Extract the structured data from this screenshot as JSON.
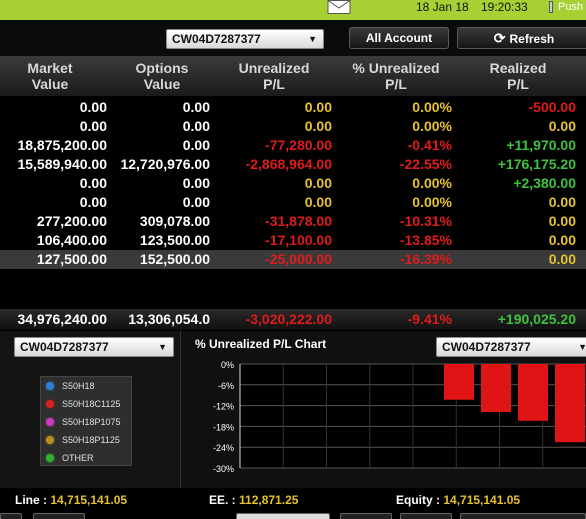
{
  "topbar": {
    "date": "18 Jan 18",
    "time": "19:20:33",
    "push_label": "Push",
    "icons": [
      "mail-icon",
      "push-icon"
    ]
  },
  "controls": {
    "account_select": "CW04D7287377",
    "all_account_label": "All Account",
    "refresh_label": "Refresh"
  },
  "columns": [
    {
      "line1": "Market",
      "line2": "Value"
    },
    {
      "line1": "Options",
      "line2": "Value"
    },
    {
      "line1": "Unrealized",
      "line2": "P/L"
    },
    {
      "line1": "% Unrealized",
      "line2": "P/L"
    },
    {
      "line1": "Realized",
      "line2": "P/L"
    }
  ],
  "rows": [
    {
      "market": "0.00",
      "options": "0.00",
      "unreal": "0.00",
      "pct": "0.00%",
      "realized": "-500.00",
      "u": "yellow",
      "p": "yellow",
      "r": "red"
    },
    {
      "market": "0.00",
      "options": "0.00",
      "unreal": "0.00",
      "pct": "0.00%",
      "realized": "0.00",
      "u": "yellow",
      "p": "yellow",
      "r": "yellow"
    },
    {
      "market": "18,875,200.00",
      "options": "0.00",
      "unreal": "-77,280.00",
      "pct": "-0.41%",
      "realized": "+11,970.00",
      "u": "red",
      "p": "red",
      "r": "green"
    },
    {
      "market": "15,589,940.00",
      "options": "12,720,976.00",
      "unreal": "-2,868,964.00",
      "pct": "-22.55%",
      "realized": "+176,175.20",
      "u": "red",
      "p": "red",
      "r": "green"
    },
    {
      "market": "0.00",
      "options": "0.00",
      "unreal": "0.00",
      "pct": "0.00%",
      "realized": "+2,380.00",
      "u": "yellow",
      "p": "yellow",
      "r": "green"
    },
    {
      "market": "0.00",
      "options": "0.00",
      "unreal": "0.00",
      "pct": "0.00%",
      "realized": "0.00",
      "u": "yellow",
      "p": "yellow",
      "r": "yellow"
    },
    {
      "market": "277,200.00",
      "options": "309,078.00",
      "unreal": "-31,878.00",
      "pct": "-10.31%",
      "realized": "0.00",
      "u": "red",
      "p": "red",
      "r": "yellow"
    },
    {
      "market": "106,400.00",
      "options": "123,500.00",
      "unreal": "-17,100.00",
      "pct": "-13.85%",
      "realized": "0.00",
      "u": "red",
      "p": "red",
      "r": "yellow"
    },
    {
      "market": "127,500.00",
      "options": "152,500.00",
      "unreal": "-25,000.00",
      "pct": "-16.39%",
      "realized": "0.00",
      "u": "red",
      "p": "red",
      "r": "yellow",
      "selected": true
    }
  ],
  "totals": {
    "market": "34,976,240.00",
    "options": "13,306,054.0",
    "unreal": "-3,020,222.00",
    "pct": "-9.41%",
    "realized": "+190,025.20"
  },
  "lower": {
    "left_select": "CW04D7287377",
    "chart_select": "CW04D7287377",
    "chart_title": "% Unrealized P/L Chart",
    "legend": [
      {
        "label": "S50H18",
        "color": "#2f7fd8"
      },
      {
        "label": "S50H18C1125",
        "color": "#d82020"
      },
      {
        "label": "S50H18P1075",
        "color": "#c83ab8"
      },
      {
        "label": "S50H18P1125",
        "color": "#b89020"
      },
      {
        "label": "OTHER",
        "color": "#30b030"
      }
    ]
  },
  "chart_data": {
    "type": "bar",
    "title": "% Unrealized P/L Chart",
    "categories": [
      "S50H18",
      "S50H18C1125",
      "S50H18P1075",
      "S50H18P1125",
      "OTHER"
    ],
    "values": [
      0,
      -10.31,
      -13.85,
      -16.39,
      -22.55
    ],
    "yticks": [
      "0%",
      "-6%",
      "-12%",
      "-18%",
      "-24%",
      "-30%"
    ],
    "ylim": [
      -30,
      0
    ],
    "grid": true,
    "bar_color": "#e01414"
  },
  "bottom": {
    "line_label": "Line :",
    "line_value": "14,715,141.05",
    "ee_label": "EE. :",
    "ee_value": "112,871.25",
    "equity_label": "Equity :",
    "equity_value": "14,715,141.05"
  }
}
